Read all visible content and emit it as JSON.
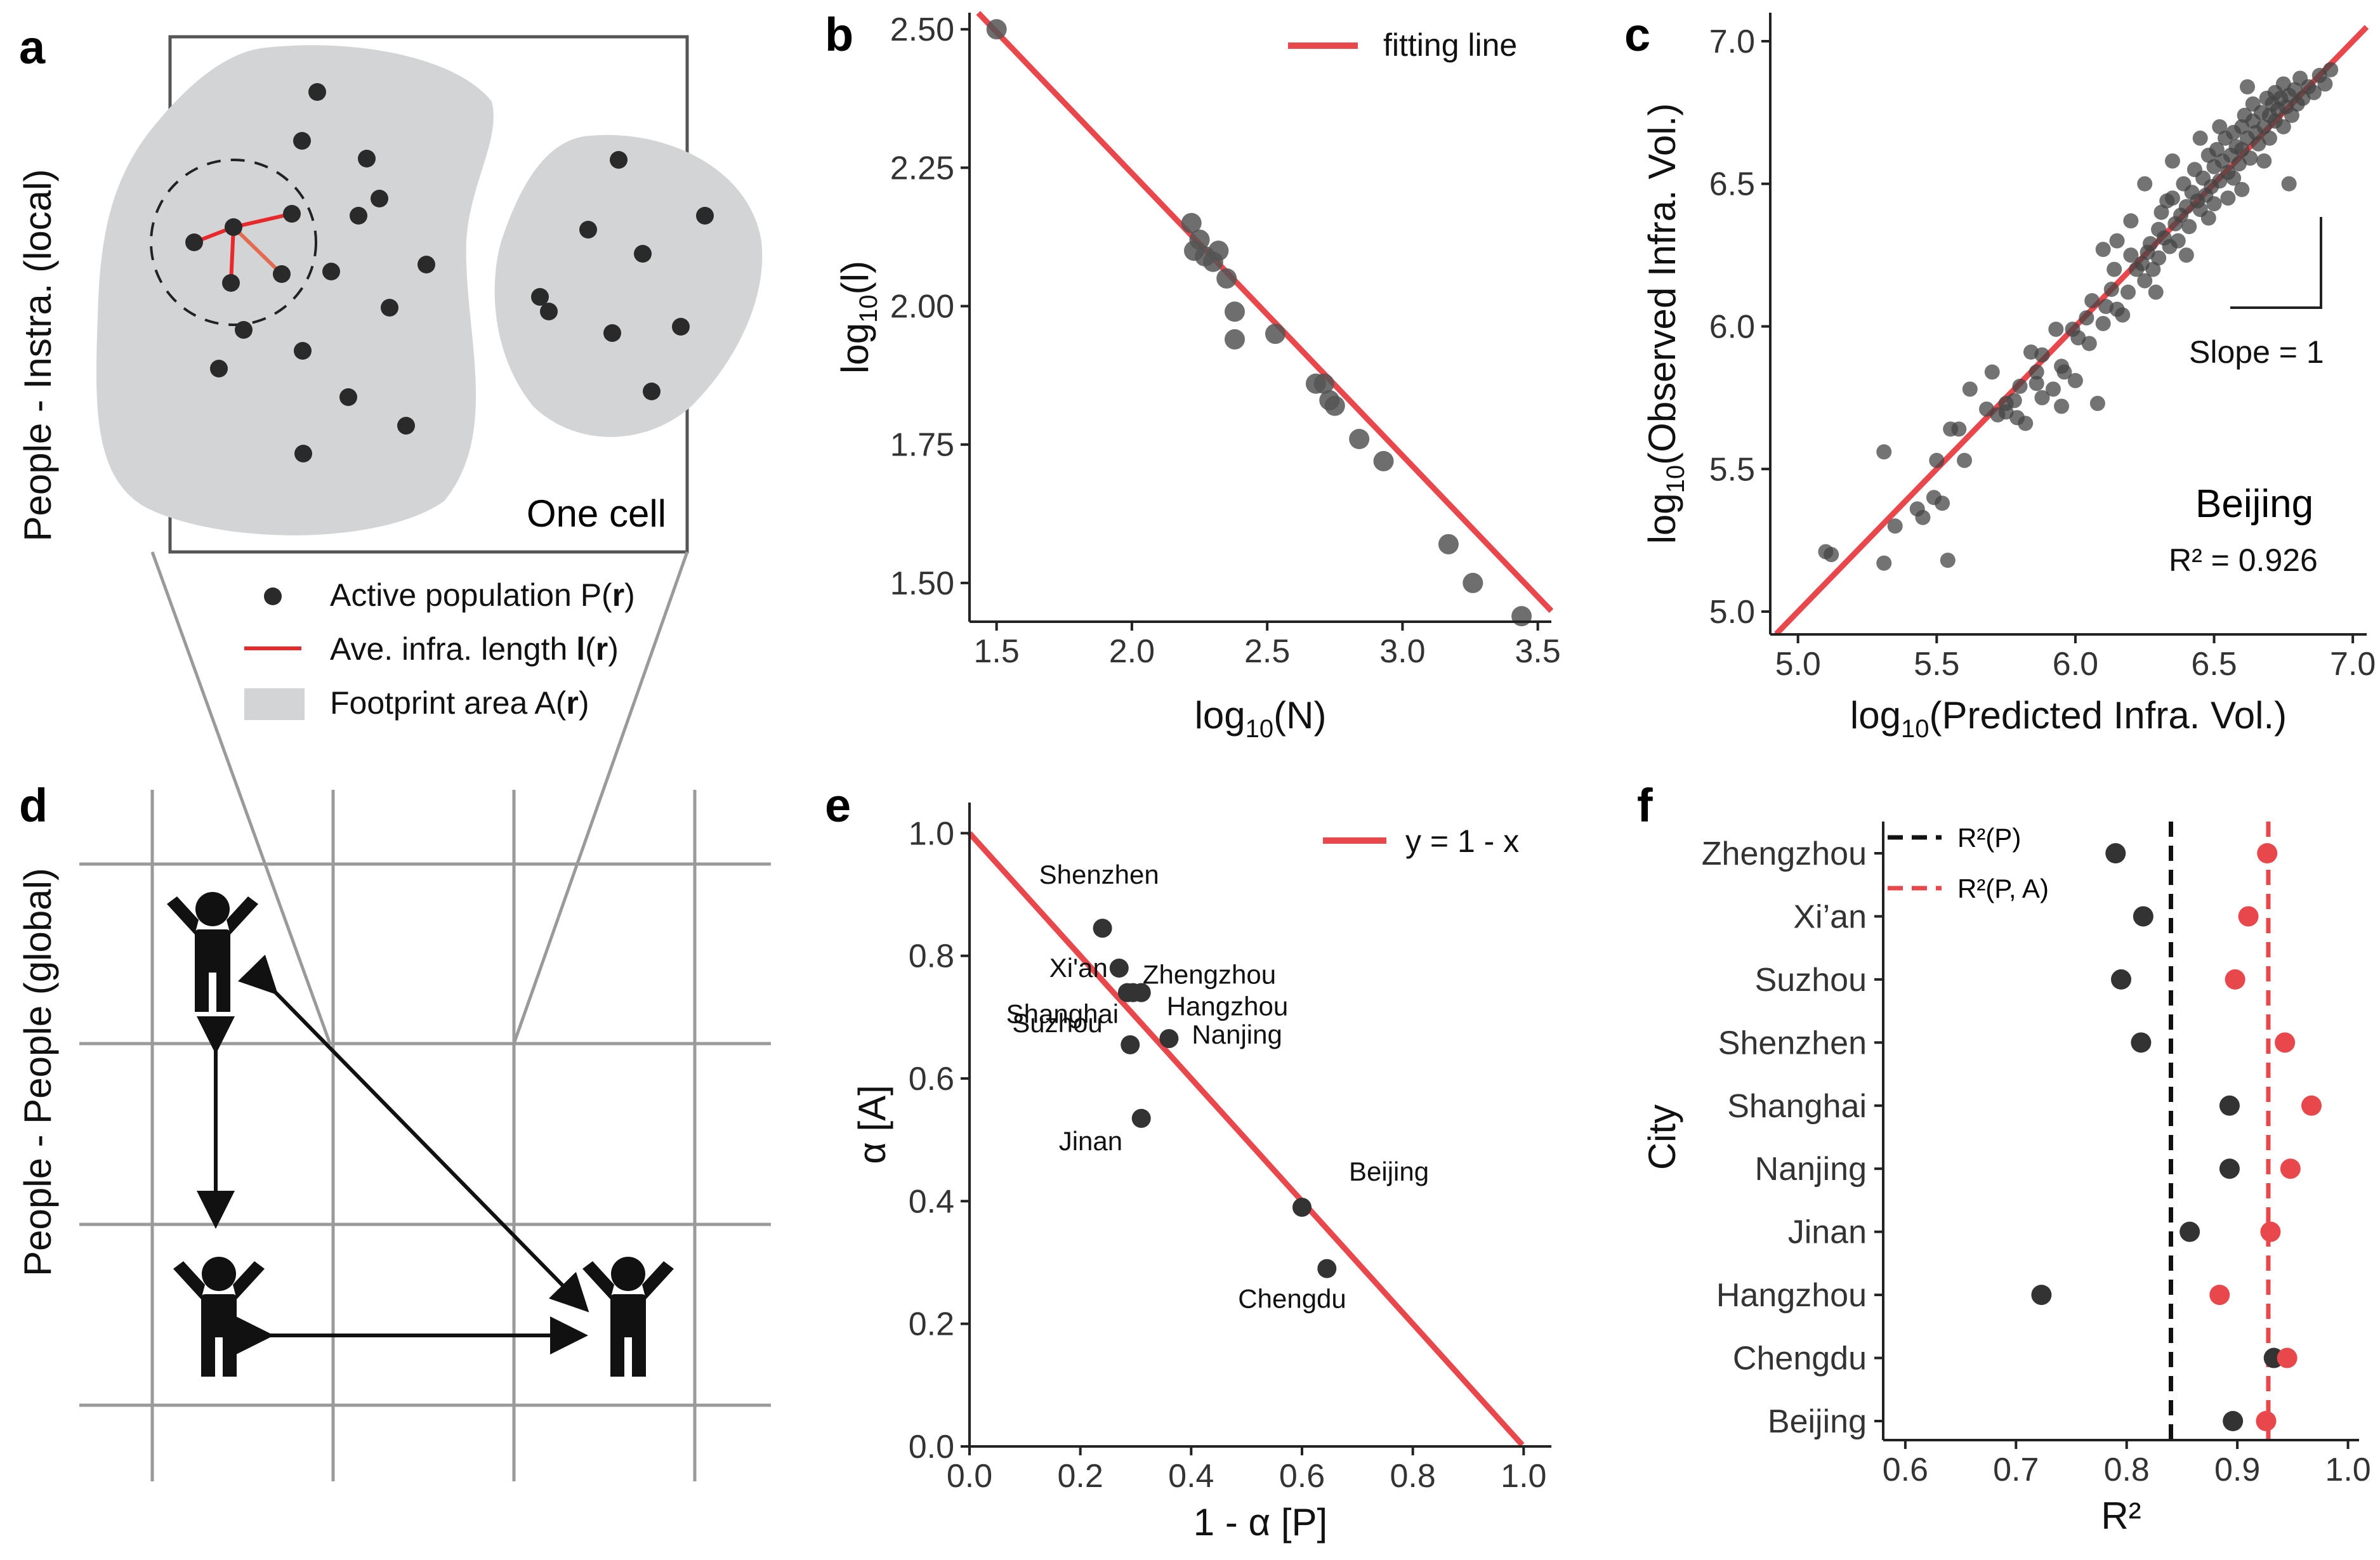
{
  "panel_labels": {
    "a": "a",
    "b": "b",
    "c": "c",
    "d": "d",
    "e": "e",
    "f": "f"
  },
  "panel_a": {
    "side_label": "People - Instra. (local)",
    "cell_label": "One cell",
    "legend": [
      {
        "label": "Active population P(",
        "bold": "r",
        "tail": ")"
      },
      {
        "label": "Ave. infra. length ",
        "bold_l": "l",
        "mid": "(",
        "bold": "r",
        "tail": ")"
      },
      {
        "label": "Footprint area A(",
        "bold": "r",
        "tail": ")"
      }
    ],
    "colors": {
      "footprint": "#d3d4d6",
      "line": "#e8282b",
      "dot": "#2a2a2a"
    }
  },
  "panel_d": {
    "side_label": "People - People (global)",
    "icons": [
      "person-arms-up-icon",
      "person-arms-up-icon",
      "person-arms-up-icon"
    ]
  },
  "chart_data": [
    {
      "panel": "b",
      "type": "scatter",
      "xlabel_base": "log",
      "xlabel_sub": "10",
      "xlabel_tail": "(N)",
      "ylabel_base": "log",
      "ylabel_sub": "10",
      "ylabel_tail": "(l)",
      "xlim": [
        1.4,
        3.55
      ],
      "ylim": [
        1.43,
        2.53
      ],
      "xticks": [
        "1.5",
        "2.0",
        "2.5",
        "3.0",
        "3.5"
      ],
      "yticks": [
        "1.50",
        "1.75",
        "2.00",
        "2.25",
        "2.50"
      ],
      "legend": "fitting line",
      "fit": {
        "slope": -0.51,
        "intercept": 3.26
      },
      "points": [
        [
          1.5,
          2.5
        ],
        [
          2.22,
          2.15
        ],
        [
          2.25,
          2.12
        ],
        [
          2.23,
          2.1
        ],
        [
          2.27,
          2.09
        ],
        [
          2.3,
          2.08
        ],
        [
          2.32,
          2.1
        ],
        [
          2.35,
          2.05
        ],
        [
          2.38,
          1.99
        ],
        [
          2.38,
          1.94
        ],
        [
          2.53,
          1.95
        ],
        [
          2.68,
          1.86
        ],
        [
          2.71,
          1.86
        ],
        [
          2.73,
          1.83
        ],
        [
          2.75,
          1.82
        ],
        [
          2.84,
          1.76
        ],
        [
          2.93,
          1.72
        ],
        [
          3.17,
          1.57
        ],
        [
          3.26,
          1.5
        ],
        [
          3.44,
          1.44
        ]
      ],
      "color_fit": "#e8474c",
      "color_point": "#555555"
    },
    {
      "panel": "c",
      "type": "scatter",
      "xlabel_base": "log",
      "xlabel_sub": "10",
      "xlabel_tail": "(Predicted Infra. Vol.)",
      "ylabel_base": "log",
      "ylabel_sub": "10",
      "ylabel_tail": "(Observed Infra. Vol.)",
      "xlim": [
        4.9,
        7.05
      ],
      "ylim": [
        4.92,
        7.1
      ],
      "xticks": [
        "5.0",
        "5.5",
        "6.0",
        "6.5",
        "7.0"
      ],
      "yticks": [
        "5.0",
        "5.5",
        "6.0",
        "6.5",
        "7.0"
      ],
      "city": "Beijing",
      "r2_label": "R² = 0.926",
      "slope_label": "Slope = 1",
      "fit": {
        "slope": 1.0,
        "intercept": 0.0
      },
      "points": [
        [
          5.1,
          5.21
        ],
        [
          5.12,
          5.2
        ],
        [
          5.31,
          5.17
        ],
        [
          5.31,
          5.56
        ],
        [
          5.35,
          5.3
        ],
        [
          5.43,
          5.36
        ],
        [
          5.45,
          5.33
        ],
        [
          5.49,
          5.4
        ],
        [
          5.52,
          5.38
        ],
        [
          5.54,
          5.18
        ],
        [
          5.5,
          5.53
        ],
        [
          5.55,
          5.64
        ],
        [
          5.58,
          5.64
        ],
        [
          5.62,
          5.78
        ],
        [
          5.6,
          5.53
        ],
        [
          5.68,
          5.71
        ],
        [
          5.7,
          5.84
        ],
        [
          5.72,
          5.69
        ],
        [
          5.75,
          5.7
        ],
        [
          5.75,
          5.73
        ],
        [
          5.78,
          5.74
        ],
        [
          5.79,
          5.68
        ],
        [
          5.8,
          5.79
        ],
        [
          5.82,
          5.66
        ],
        [
          5.84,
          5.91
        ],
        [
          5.86,
          5.8
        ],
        [
          5.88,
          5.75
        ],
        [
          5.86,
          5.84
        ],
        [
          5.88,
          5.9
        ],
        [
          5.92,
          5.78
        ],
        [
          5.93,
          5.99
        ],
        [
          5.95,
          5.86
        ],
        [
          5.96,
          5.84
        ],
        [
          5.99,
          5.99
        ],
        [
          6.0,
          5.81
        ],
        [
          6.01,
          5.96
        ],
        [
          6.04,
          6.03
        ],
        [
          6.05,
          5.94
        ],
        [
          6.06,
          6.09
        ],
        [
          6.08,
          5.73
        ],
        [
          6.1,
          6.01
        ],
        [
          6.11,
          6.07
        ],
        [
          6.13,
          6.13
        ],
        [
          6.14,
          6.2
        ],
        [
          6.15,
          6.06
        ],
        [
          6.17,
          6.04
        ],
        [
          6.19,
          6.12
        ],
        [
          6.2,
          6.25
        ],
        [
          6.22,
          6.2
        ],
        [
          6.24,
          6.22
        ],
        [
          6.25,
          6.16
        ],
        [
          6.26,
          6.26
        ],
        [
          6.27,
          6.29
        ],
        [
          6.28,
          6.2
        ],
        [
          6.3,
          6.34
        ],
        [
          6.3,
          6.24
        ],
        [
          6.31,
          6.4
        ],
        [
          6.32,
          6.31
        ],
        [
          6.34,
          6.28
        ],
        [
          6.35,
          6.45
        ],
        [
          6.36,
          6.36
        ],
        [
          6.37,
          6.3
        ],
        [
          6.38,
          6.39
        ],
        [
          6.39,
          6.5
        ],
        [
          6.4,
          6.42
        ],
        [
          6.41,
          6.35
        ],
        [
          6.42,
          6.47
        ],
        [
          6.43,
          6.55
        ],
        [
          6.44,
          6.44
        ],
        [
          6.45,
          6.41
        ],
        [
          6.46,
          6.52
        ],
        [
          6.47,
          6.46
        ],
        [
          6.48,
          6.6
        ],
        [
          6.49,
          6.49
        ],
        [
          6.5,
          6.43
        ],
        [
          6.5,
          6.56
        ],
        [
          6.51,
          6.62
        ],
        [
          6.52,
          6.51
        ],
        [
          6.53,
          6.58
        ],
        [
          6.54,
          6.66
        ],
        [
          6.55,
          6.54
        ],
        [
          6.55,
          6.45
        ],
        [
          6.56,
          6.6
        ],
        [
          6.57,
          6.68
        ],
        [
          6.58,
          6.63
        ],
        [
          6.59,
          6.57
        ],
        [
          6.6,
          6.7
        ],
        [
          6.6,
          6.62
        ],
        [
          6.61,
          6.74
        ],
        [
          6.62,
          6.66
        ],
        [
          6.63,
          6.59
        ],
        [
          6.64,
          6.72
        ],
        [
          6.64,
          6.78
        ],
        [
          6.65,
          6.68
        ],
        [
          6.66,
          6.64
        ],
        [
          6.67,
          6.75
        ],
        [
          6.68,
          6.7
        ],
        [
          6.69,
          6.8
        ],
        [
          6.7,
          6.74
        ],
        [
          6.7,
          6.66
        ],
        [
          6.71,
          6.78
        ],
        [
          6.72,
          6.82
        ],
        [
          6.72,
          6.72
        ],
        [
          6.73,
          6.76
        ],
        [
          6.74,
          6.8
        ],
        [
          6.75,
          6.7
        ],
        [
          6.75,
          6.85
        ],
        [
          6.76,
          6.77
        ],
        [
          6.77,
          6.81
        ],
        [
          6.78,
          6.74
        ],
        [
          6.79,
          6.83
        ],
        [
          6.8,
          6.78
        ],
        [
          6.81,
          6.87
        ],
        [
          6.82,
          6.8
        ],
        [
          6.84,
          6.84
        ],
        [
          6.86,
          6.82
        ],
        [
          6.88,
          6.88
        ],
        [
          6.9,
          6.85
        ],
        [
          6.92,
          6.9
        ],
        [
          6.77,
          6.5
        ],
        [
          6.1,
          6.27
        ],
        [
          6.2,
          6.37
        ],
        [
          6.35,
          6.58
        ],
        [
          6.45,
          6.66
        ],
        [
          6.4,
          6.25
        ],
        [
          6.25,
          6.5
        ],
        [
          6.6,
          6.48
        ],
        [
          5.95,
          5.72
        ],
        [
          6.33,
          6.44
        ],
        [
          6.48,
          6.38
        ],
        [
          6.52,
          6.7
        ],
        [
          6.62,
          6.84
        ],
        [
          6.68,
          6.58
        ],
        [
          6.57,
          6.52
        ],
        [
          6.29,
          6.12
        ],
        [
          6.15,
          6.3
        ]
      ],
      "color_fit": "#e8474c",
      "color_point": "#444444"
    },
    {
      "panel": "e",
      "type": "scatter",
      "xlabel": "1 - α [P]",
      "ylabel": "α [A]",
      "xlim": [
        0.0,
        1.05
      ],
      "ylim": [
        0.0,
        1.05
      ],
      "xticks": [
        "0.0",
        "0.2",
        "0.4",
        "0.6",
        "0.8",
        "1.0"
      ],
      "yticks": [
        "0.0",
        "0.2",
        "0.4",
        "0.6",
        "0.8",
        "1.0"
      ],
      "legend": "y = 1 - x",
      "points": [
        {
          "city": "Shenzhen",
          "x": 0.24,
          "y": 0.845
        },
        {
          "city": "Zhengzhou",
          "x": 0.285,
          "y": 0.74
        },
        {
          "city": "Xi'an",
          "x": 0.27,
          "y": 0.78
        },
        {
          "city": "Hangzhou",
          "x": 0.31,
          "y": 0.74
        },
        {
          "city": "Shanghai",
          "x": 0.295,
          "y": 0.74
        },
        {
          "city": "Nanjing",
          "x": 0.36,
          "y": 0.665
        },
        {
          "city": "Suzhou",
          "x": 0.29,
          "y": 0.655
        },
        {
          "city": "Jinan",
          "x": 0.31,
          "y": 0.535
        },
        {
          "city": "Beijing",
          "x": 0.6,
          "y": 0.39
        },
        {
          "city": "Chengdu",
          "x": 0.645,
          "y": 0.29
        }
      ],
      "color_fit": "#e8474c",
      "color_point": "#333333"
    },
    {
      "panel": "f",
      "type": "scatter",
      "xlabel": "R²",
      "ylabel": "City",
      "xlim": [
        0.58,
        1.01
      ],
      "xticks": [
        "0.6",
        "0.7",
        "0.8",
        "0.9",
        "1.0"
      ],
      "categories": [
        "Zhengzhou",
        "Xi’an",
        "Suzhou",
        "Shenzhen",
        "Shanghai",
        "Nanjing",
        "Jinan",
        "Hangzhou",
        "Chengdu",
        "Beijing"
      ],
      "series": [
        {
          "name": "R²(P)",
          "values": [
            0.79,
            0.815,
            0.795,
            0.813,
            0.893,
            0.893,
            0.857,
            0.723,
            0.933,
            0.896
          ],
          "color": "#333333",
          "mean": 0.84
        },
        {
          "name": "R²(P, A)",
          "values": [
            0.927,
            0.91,
            0.898,
            0.943,
            0.967,
            0.948,
            0.93,
            0.884,
            0.945,
            0.926
          ],
          "color": "#e8474c",
          "mean": 0.928
        }
      ]
    }
  ]
}
